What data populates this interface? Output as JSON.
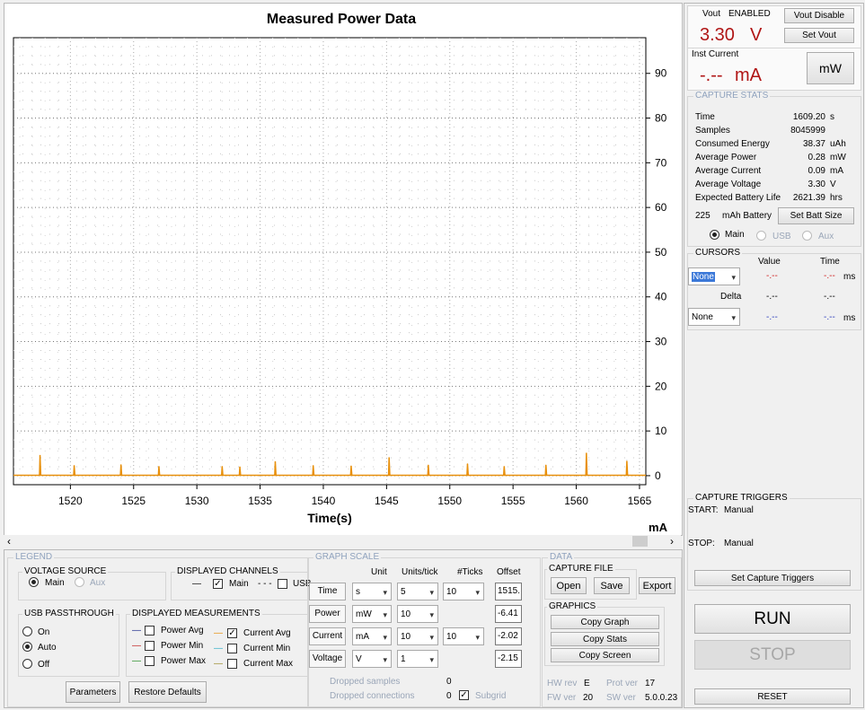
{
  "chart_data": {
    "type": "line",
    "title": "Measured Power Data",
    "xlabel": "Time(s)",
    "ylabel": "",
    "unit_label": "mA",
    "xlim": [
      1515.5,
      1565.5
    ],
    "ylim": [
      -2.02,
      97.98
    ],
    "x_ticks": [
      1520,
      1525,
      1530,
      1535,
      1540,
      1545,
      1550,
      1555,
      1560,
      1565
    ],
    "y_ticks": [
      0,
      10,
      20,
      30,
      40,
      50,
      60,
      70,
      80,
      90
    ],
    "grid": true,
    "series": [
      {
        "color": "#e8900c",
        "spikes_x": [
          1517.6,
          1520.3,
          1524.0,
          1527.0,
          1532.0,
          1533.4,
          1536.2,
          1539.2,
          1542.2,
          1545.2,
          1548.3,
          1551.4,
          1554.3,
          1557.6,
          1560.8,
          1564.0
        ],
        "spikes_y": [
          4.5,
          2.2,
          2.4,
          2.0,
          2.0,
          1.9,
          3.1,
          2.2,
          2.1,
          4.0,
          2.3,
          2.6,
          2.0,
          2.3,
          5.0,
          3.2
        ],
        "baseline": 0.09
      }
    ]
  },
  "right": {
    "vout_label": "Vout",
    "vout_status": "ENABLED",
    "vout_value": "3.30",
    "vout_unit": "V",
    "vout_disable": "Vout Disable",
    "set_vout": "Set Vout",
    "inst_label": "Inst Current",
    "inst_value": "-.--",
    "inst_unit": "mA",
    "mw_button": "mW",
    "capture_stats_title": "CAPTURE STATS",
    "stats": [
      {
        "label": "Time",
        "value": "1609.20",
        "unit": "s"
      },
      {
        "label": "Samples",
        "value": "8045999",
        "unit": ""
      },
      {
        "label": "Consumed Energy",
        "value": "38.37",
        "unit": "uAh"
      },
      {
        "label": "Average Power",
        "value": "0.28",
        "unit": "mW"
      },
      {
        "label": "Average Current",
        "value": "0.09",
        "unit": "mA"
      },
      {
        "label": "Average Voltage",
        "value": "3.30",
        "unit": "V"
      },
      {
        "label": "Expected Battery Life",
        "value": "2621.39",
        "unit": "hrs"
      }
    ],
    "battery_value": "225",
    "battery_label": "mAh Battery",
    "set_batt": "Set Batt Size",
    "ch_main": "Main",
    "ch_usb": "USB",
    "ch_aux": "Aux",
    "cursors_title": "CURSORS",
    "cur_value_hdr": "Value",
    "cur_time_hdr": "Time",
    "cursor1": "None",
    "cursor1_value": "-.--",
    "cursor1_time": "-.--",
    "cursor1_unit": "ms",
    "delta_label": "Delta",
    "delta_value": "-.--",
    "delta_time": "-.--",
    "cursor2": "None",
    "cursor2_value": "-.--",
    "cursor2_time": "-.--",
    "cursor2_unit": "ms",
    "triggers_title": "CAPTURE TRIGGERS",
    "start_label": "START:",
    "start_value": "Manual",
    "stop_label": "STOP:",
    "stop_value": "Manual",
    "set_triggers": "Set Capture Triggers",
    "run": "RUN",
    "stop": "STOP",
    "reset": "RESET"
  },
  "bottom": {
    "legend_title": "LEGEND",
    "voltage_source_title": "VOLTAGE SOURCE",
    "vs_main": "Main",
    "vs_aux": "Aux",
    "displayed_channels_title": "DISPLAYED CHANNELS",
    "dc_main_line": "—",
    "dc_main": "Main",
    "dc_usb_line": "- - -",
    "dc_usb": "USB",
    "usb_passthrough_title": "USB PASSTHROUGH",
    "up_on": "On",
    "up_auto": "Auto",
    "up_off": "Off",
    "displayed_measurements_title": "DISPLAYED MEASUREMENTS",
    "measurements": [
      "Power Avg",
      "Power Min",
      "Power Max",
      "Current Avg",
      "Current Min",
      "Current Max"
    ],
    "parameters": "Parameters",
    "restore_defaults": "Restore Defaults",
    "graph_scale_title": "GRAPH SCALE",
    "gs_unit_hdr": "Unit",
    "gs_upt_hdr": "Units/tick",
    "gs_ticks_hdr": "#Ticks",
    "gs_offset_hdr": "Offset",
    "rows": [
      {
        "label": "Time",
        "unit": "s",
        "upt": "5",
        "ticks": "10",
        "offset": "1515."
      },
      {
        "label": "Power",
        "unit": "mW",
        "upt": "10",
        "ticks": "",
        "offset": "-6.41"
      },
      {
        "label": "Current",
        "unit": "mA",
        "upt": "10",
        "ticks": "10",
        "offset": "-2.02"
      },
      {
        "label": "Voltage",
        "unit": "V",
        "upt": "1",
        "ticks": "",
        "offset": "-2.15"
      }
    ],
    "dropped_samples_label": "Dropped samples",
    "dropped_samples_value": "0",
    "dropped_conn_label": "Dropped connections",
    "dropped_conn_value": "0",
    "subgrid": "Subgrid",
    "data_title": "DATA",
    "capture_file_title": "CAPTURE FILE",
    "open": "Open",
    "save": "Save",
    "export": "Export",
    "graphics_title": "GRAPHICS",
    "copy_graph": "Copy Graph",
    "copy_stats": "Copy Stats",
    "copy_screen": "Copy Screen",
    "hw_rev_label": "HW rev",
    "hw_rev": "E",
    "prot_ver_label": "Prot ver",
    "prot_ver": "17",
    "fw_ver_label": "FW ver",
    "fw_ver": "20",
    "sw_ver_label": "SW ver",
    "sw_ver": "5.0.0.23"
  },
  "colors": {
    "accent_red": "#b01515",
    "trace": "#e8900c",
    "header_gray": "#8fa2bd"
  },
  "icons": {
    "scroll_left": "chevron-left-icon",
    "scroll_right": "chevron-right-icon",
    "dropdown": "chevron-down-icon"
  }
}
